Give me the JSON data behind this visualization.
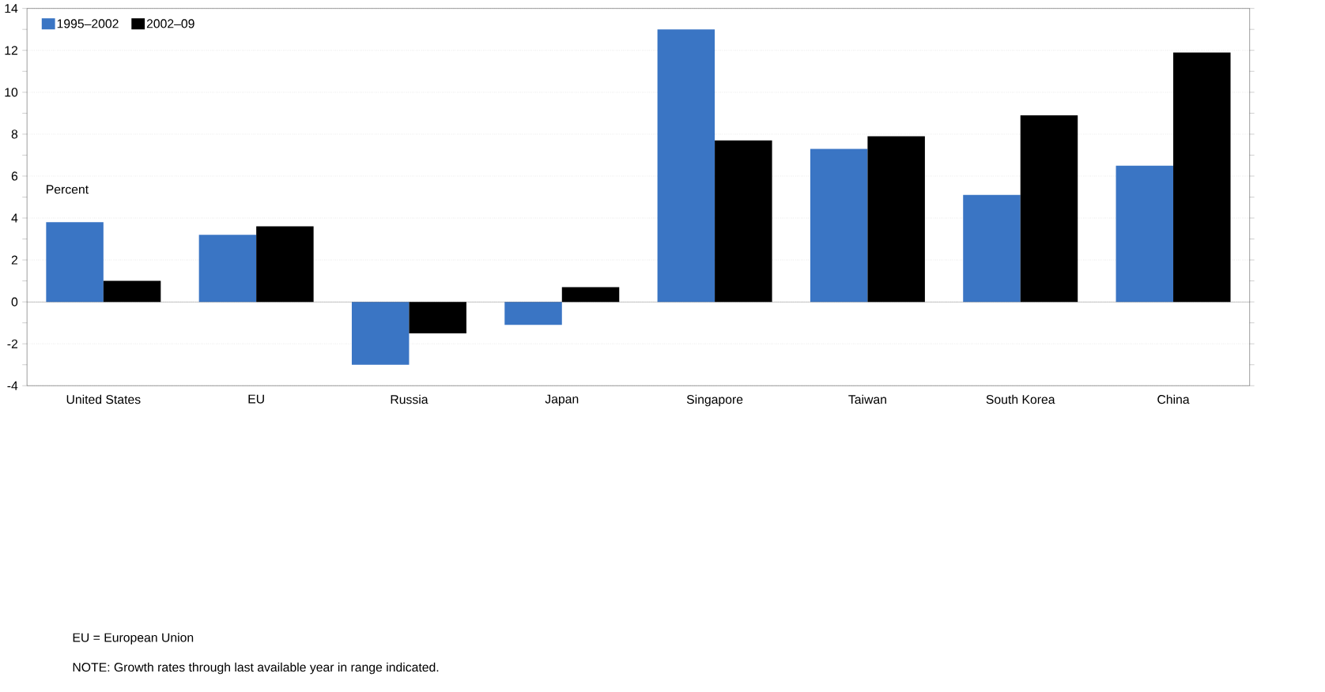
{
  "chart_data": {
    "type": "bar",
    "ylabel": "Percent",
    "categories": [
      "United States",
      "EU",
      "Russia",
      "Japan",
      "Singapore",
      "Taiwan",
      "South Korea",
      "China"
    ],
    "series": [
      {
        "name": "1995–2002",
        "color": "#3a75c4",
        "values": [
          3.8,
          3.2,
          -3.0,
          -1.1,
          13.0,
          7.3,
          5.1,
          6.5
        ]
      },
      {
        "name": "2002–09",
        "color": "#000000",
        "values": [
          1.0,
          3.6,
          -1.5,
          0.7,
          7.7,
          7.9,
          8.9,
          11.9
        ]
      }
    ],
    "ylim": [
      -4,
      14
    ],
    "yticks": [
      -4,
      -2,
      0,
      2,
      4,
      6,
      8,
      10,
      12,
      14
    ],
    "grid": "y",
    "legend": "top left",
    "annotations": [
      "EU = European Union",
      "NOTE: Growth rates through last available year in range indicated."
    ]
  }
}
